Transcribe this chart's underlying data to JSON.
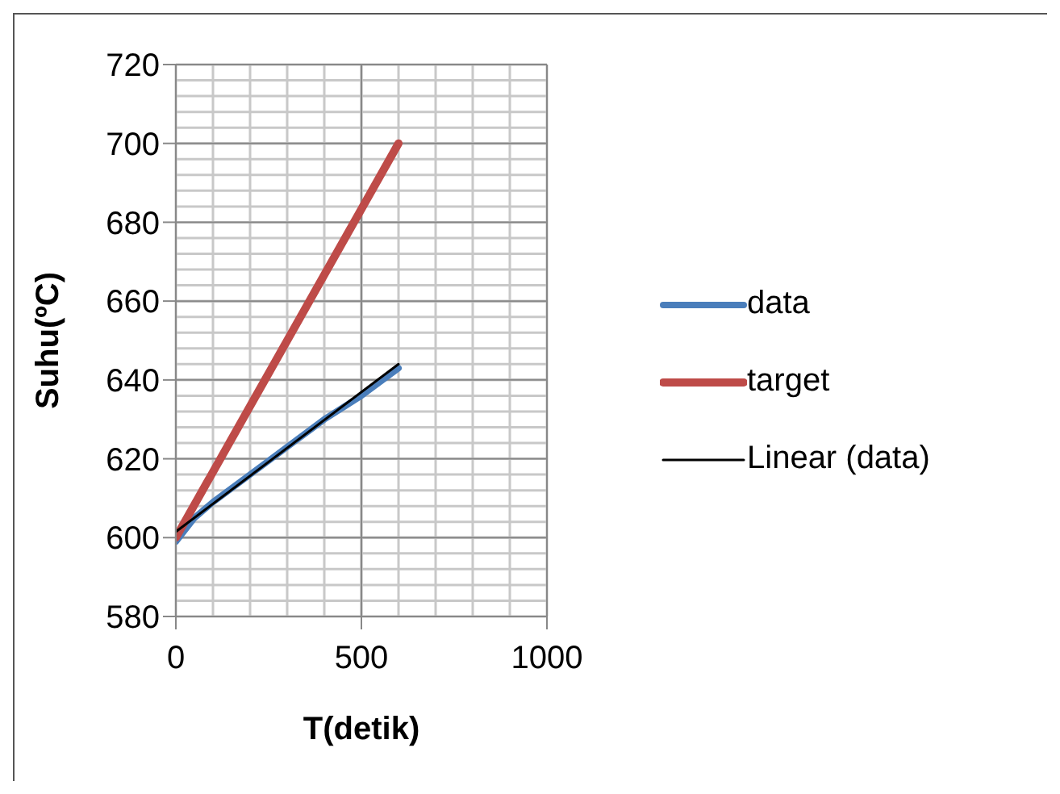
{
  "chart_data": {
    "type": "line",
    "xlabel": "T(detik)",
    "ylabel": "Suhu(ºC)",
    "xlim": [
      0,
      1000
    ],
    "xticks": [
      0,
      500,
      1000
    ],
    "ylim": [
      580,
      720
    ],
    "yticks": [
      580,
      600,
      620,
      640,
      660,
      680,
      700,
      720
    ],
    "grid": true,
    "legend": "right",
    "marker": "none",
    "series": [
      {
        "name": "data",
        "color": "#4a7ebb",
        "x": [
          0,
          50,
          100,
          200,
          300,
          400,
          500,
          600
        ],
        "values": [
          599,
          605,
          609,
          616,
          623,
          630,
          636,
          643
        ]
      },
      {
        "name": "target",
        "color": "#be4b48",
        "x": [
          0,
          600
        ],
        "values": [
          600,
          700
        ]
      },
      {
        "name": "Linear (data)",
        "color": "#000000",
        "x": [
          0,
          600
        ],
        "values": [
          601.5,
          644
        ]
      }
    ]
  }
}
